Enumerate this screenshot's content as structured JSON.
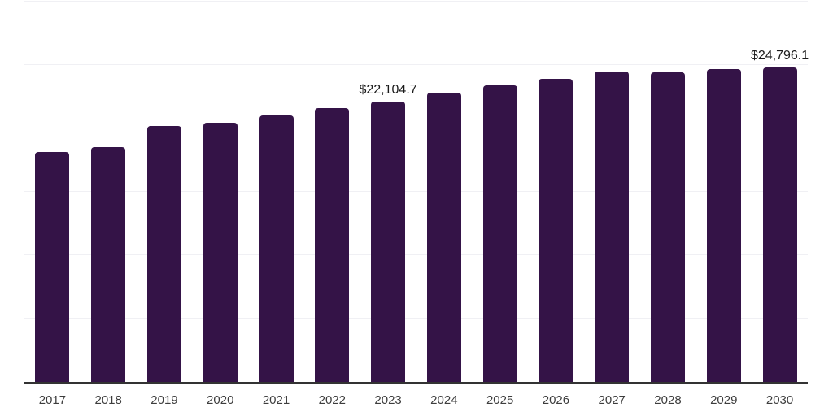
{
  "chart_data": {
    "type": "bar",
    "title": "",
    "xlabel": "",
    "ylabel": "",
    "categories": [
      "2017",
      "2018",
      "2019",
      "2020",
      "2021",
      "2022",
      "2023",
      "2024",
      "2025",
      "2026",
      "2027",
      "2028",
      "2029",
      "2030"
    ],
    "values": [
      18150,
      18500,
      20200,
      20450,
      21000,
      21600,
      22104.7,
      22800,
      23430,
      23880,
      24520,
      24430,
      24710,
      24796.1
    ],
    "value_labels": [
      "",
      "",
      "",
      "",
      "",
      "",
      "$22,104.7",
      "",
      "",
      "",
      "",
      "",
      "",
      "$24,796.1"
    ],
    "ylim": [
      0,
      30000
    ],
    "gridline_step": 5000,
    "grid": "horizontal-only",
    "legend": "none",
    "y_axis_labels_visible": false,
    "bar_color": "#341347",
    "axis_line_color": "#333333",
    "gridline_color": "#f0f0f4",
    "tick_label_color": "#3d3d3d",
    "value_label_color": "#1a1a1a",
    "background_color": "#ffffff"
  }
}
